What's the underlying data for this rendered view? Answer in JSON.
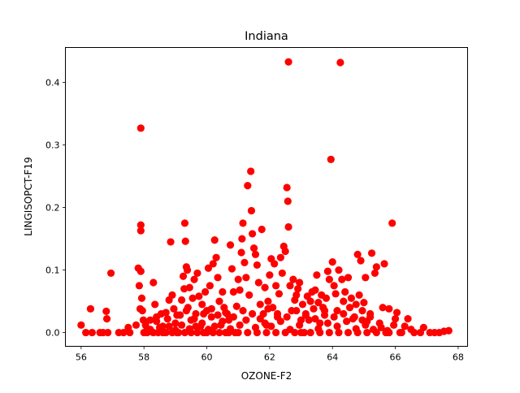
{
  "chart_data": {
    "type": "scatter",
    "title": "Indiana",
    "xlabel": "OZONE-F2",
    "ylabel": "LINGISOPCT-F19",
    "xlim": [
      55.5,
      68.3
    ],
    "ylim": [
      -0.022,
      0.456
    ],
    "xticks": [
      56,
      58,
      60,
      62,
      64,
      66,
      68
    ],
    "yticks": [
      0.0,
      0.1,
      0.2,
      0.3,
      0.4
    ],
    "ytick_labels": [
      "0.0",
      "0.1",
      "0.2",
      "0.3",
      "0.4"
    ],
    "marker_color": "#ff0000",
    "grid": false,
    "legend": "none",
    "series": [
      {
        "points": [
          [
            56.0,
            0.012
          ],
          [
            56.15,
            0.0
          ],
          [
            56.3,
            0.038
          ],
          [
            56.35,
            0.0
          ],
          [
            56.6,
            0.0
          ],
          [
            56.7,
            0.0
          ],
          [
            56.8,
            0.034
          ],
          [
            56.82,
            0.022
          ],
          [
            56.85,
            0.0
          ],
          [
            56.95,
            0.095
          ],
          [
            57.2,
            0.0
          ],
          [
            57.35,
            0.0
          ],
          [
            57.5,
            0.008
          ],
          [
            57.55,
            0.0
          ],
          [
            57.75,
            0.012
          ],
          [
            57.82,
            0.103
          ],
          [
            57.85,
            0.075
          ],
          [
            57.88,
            0.038
          ],
          [
            57.9,
            0.327
          ],
          [
            57.9,
            0.172
          ],
          [
            57.9,
            0.163
          ],
          [
            57.9,
            0.098
          ],
          [
            57.93,
            0.055
          ],
          [
            57.95,
            0.035
          ],
          [
            57.98,
            0.02
          ],
          [
            58.0,
            0.0
          ],
          [
            58.05,
            0.012
          ],
          [
            58.1,
            0.005
          ],
          [
            58.2,
            0.02
          ],
          [
            58.25,
            0.001
          ],
          [
            58.3,
            0.08
          ],
          [
            58.35,
            0.045
          ],
          [
            58.4,
            0.018
          ],
          [
            58.45,
            0.0
          ],
          [
            58.55,
            0.03
          ],
          [
            58.6,
            0.01
          ],
          [
            58.7,
            0.0
          ],
          [
            58.75,
            0.022
          ],
          [
            58.8,
            0.052
          ],
          [
            58.85,
            0.145
          ],
          [
            58.9,
            0.06
          ],
          [
            58.95,
            0.038
          ],
          [
            59.0,
            0.015
          ],
          [
            59.05,
            0.0
          ],
          [
            59.15,
            0.028
          ],
          [
            59.2,
            0.052
          ],
          [
            59.25,
            0.09
          ],
          [
            59.28,
            0.07
          ],
          [
            59.3,
            0.175
          ],
          [
            59.32,
            0.146
          ],
          [
            59.35,
            0.105
          ],
          [
            59.38,
            0.1
          ],
          [
            59.4,
            0.04
          ],
          [
            59.45,
            0.072
          ],
          [
            59.5,
            0.02
          ],
          [
            59.55,
            0.055
          ],
          [
            59.6,
            0.085
          ],
          [
            59.65,
            0.03
          ],
          [
            59.7,
            0.095
          ],
          [
            59.75,
            0.058
          ],
          [
            59.8,
            0.01
          ],
          [
            59.85,
            0.045
          ],
          [
            59.9,
            0.0
          ],
          [
            59.95,
            0.065
          ],
          [
            60.0,
            0.035
          ],
          [
            60.05,
            0.103
          ],
          [
            60.1,
            0.075
          ],
          [
            60.15,
            0.025
          ],
          [
            60.2,
            0.11
          ],
          [
            60.25,
            0.148
          ],
          [
            60.3,
            0.12
          ],
          [
            60.35,
            0.088
          ],
          [
            60.4,
            0.05
          ],
          [
            60.45,
            0.012
          ],
          [
            60.5,
            0.065
          ],
          [
            60.55,
            0.04
          ],
          [
            60.6,
            0.0
          ],
          [
            60.65,
            0.03
          ],
          [
            60.7,
            0.02
          ],
          [
            60.75,
            0.14
          ],
          [
            60.8,
            0.102
          ],
          [
            60.85,
            0.065
          ],
          [
            60.9,
            0.0
          ],
          [
            60.95,
            0.042
          ],
          [
            61.0,
            0.085
          ],
          [
            61.05,
            0.068
          ],
          [
            61.1,
            0.128
          ],
          [
            61.12,
            0.15
          ],
          [
            61.15,
            0.175
          ],
          [
            61.2,
            0.112
          ],
          [
            61.25,
            0.088
          ],
          [
            61.3,
            0.235
          ],
          [
            61.35,
            0.06
          ],
          [
            61.4,
            0.258
          ],
          [
            61.42,
            0.195
          ],
          [
            61.45,
            0.158
          ],
          [
            61.5,
            0.135
          ],
          [
            61.55,
            0.125
          ],
          [
            61.6,
            0.108
          ],
          [
            61.65,
            0.08
          ],
          [
            61.7,
            0.045
          ],
          [
            61.75,
            0.165
          ],
          [
            61.8,
            0.03
          ],
          [
            61.85,
            0.072
          ],
          [
            61.9,
            0.012
          ],
          [
            61.95,
            0.05
          ],
          [
            62.0,
            0.092
          ],
          [
            62.05,
            0.118
          ],
          [
            62.1,
            0.04
          ],
          [
            62.15,
            0.11
          ],
          [
            62.2,
            0.075
          ],
          [
            62.25,
            0.025
          ],
          [
            62.3,
            0.062
          ],
          [
            62.35,
            0.12
          ],
          [
            62.4,
            0.095
          ],
          [
            62.45,
            0.138
          ],
          [
            62.5,
            0.13
          ],
          [
            62.55,
            0.232
          ],
          [
            62.58,
            0.21
          ],
          [
            62.6,
            0.433
          ],
          [
            62.6,
            0.169
          ],
          [
            62.65,
            0.075
          ],
          [
            62.7,
            0.035
          ],
          [
            62.75,
            0.085
          ],
          [
            62.8,
            0.052
          ],
          [
            62.85,
            0.06
          ],
          [
            62.9,
            0.07
          ],
          [
            62.95,
            0.08
          ],
          [
            63.0,
            0.02
          ],
          [
            63.05,
            0.045
          ],
          [
            63.1,
            0.0
          ],
          [
            63.15,
            0.03
          ],
          [
            63.2,
            0.058
          ],
          [
            63.3,
            0.05
          ],
          [
            63.35,
            0.065
          ],
          [
            63.4,
            0.038
          ],
          [
            63.45,
            0.068
          ],
          [
            63.5,
            0.092
          ],
          [
            63.55,
            0.048
          ],
          [
            63.6,
            0.015
          ],
          [
            63.65,
            0.06
          ],
          [
            63.7,
            0.04
          ],
          [
            63.75,
            0.028
          ],
          [
            63.8,
            0.055
          ],
          [
            63.85,
            0.098
          ],
          [
            63.9,
            0.085
          ],
          [
            63.95,
            0.277
          ],
          [
            64.0,
            0.113
          ],
          [
            64.05,
            0.075
          ],
          [
            64.1,
            0.062
          ],
          [
            64.15,
            0.035
          ],
          [
            64.2,
            0.1
          ],
          [
            64.25,
            0.432
          ],
          [
            64.3,
            0.085
          ],
          [
            64.35,
            0.05
          ],
          [
            64.4,
            0.065
          ],
          [
            64.5,
            0.088
          ],
          [
            64.55,
            0.04
          ],
          [
            64.6,
            0.055
          ],
          [
            64.7,
            0.025
          ],
          [
            64.75,
            0.045
          ],
          [
            64.8,
            0.125
          ],
          [
            64.85,
            0.06
          ],
          [
            64.9,
            0.115
          ],
          [
            64.95,
            0.035
          ],
          [
            65.0,
            0.048
          ],
          [
            65.05,
            0.088
          ],
          [
            65.1,
            0.018
          ],
          [
            65.2,
            0.03
          ],
          [
            65.25,
            0.127
          ],
          [
            65.35,
            0.095
          ],
          [
            65.4,
            0.105
          ],
          [
            65.5,
            0.015
          ],
          [
            65.6,
            0.04
          ],
          [
            65.65,
            0.11
          ],
          [
            65.7,
            0.0
          ],
          [
            65.8,
            0.038
          ],
          [
            65.9,
            0.175
          ],
          [
            65.95,
            0.012
          ],
          [
            66.0,
            0.022
          ],
          [
            66.05,
            0.032
          ],
          [
            66.15,
            0.0
          ],
          [
            66.3,
            0.01
          ],
          [
            66.4,
            0.022
          ],
          [
            66.5,
            0.005
          ],
          [
            66.6,
            0.0
          ],
          [
            66.8,
            0.0
          ],
          [
            66.9,
            0.008
          ],
          [
            67.1,
            0.0
          ],
          [
            67.25,
            0.0
          ],
          [
            67.4,
            0.0
          ],
          [
            67.55,
            0.002
          ],
          [
            67.7,
            0.003
          ],
          [
            58.1,
            0.0
          ],
          [
            58.3,
            0.0
          ],
          [
            58.6,
            0.0
          ],
          [
            58.9,
            0.0
          ],
          [
            59.1,
            0.0
          ],
          [
            59.3,
            0.0
          ],
          [
            59.5,
            0.0
          ],
          [
            59.7,
            0.0
          ],
          [
            60.0,
            0.0
          ],
          [
            60.2,
            0.0
          ],
          [
            60.4,
            0.0
          ],
          [
            60.7,
            0.0
          ],
          [
            61.0,
            0.0
          ],
          [
            61.3,
            0.0
          ],
          [
            61.6,
            0.0
          ],
          [
            61.9,
            0.0
          ],
          [
            62.2,
            0.0
          ],
          [
            62.5,
            0.0
          ],
          [
            62.8,
            0.0
          ],
          [
            63.0,
            0.0
          ],
          [
            63.3,
            0.0
          ],
          [
            63.6,
            0.0
          ],
          [
            63.9,
            0.0
          ],
          [
            64.2,
            0.0
          ],
          [
            64.5,
            0.0
          ],
          [
            64.8,
            0.0
          ],
          [
            65.1,
            0.0
          ],
          [
            65.4,
            0.0
          ],
          [
            65.8,
            0.0
          ],
          [
            66.2,
            0.0
          ],
          [
            58.2,
            0.005
          ],
          [
            58.5,
            0.008
          ],
          [
            58.8,
            0.01
          ],
          [
            59.0,
            0.004
          ],
          [
            59.2,
            0.012
          ],
          [
            59.45,
            0.006
          ],
          [
            59.65,
            0.01
          ],
          [
            59.85,
            0.015
          ],
          [
            60.05,
            0.005
          ],
          [
            60.25,
            0.01
          ],
          [
            60.5,
            0.018
          ],
          [
            60.75,
            0.006
          ],
          [
            61.05,
            0.012
          ],
          [
            61.25,
            0.02
          ],
          [
            61.55,
            0.008
          ],
          [
            61.85,
            0.015
          ],
          [
            62.05,
            0.01
          ],
          [
            62.35,
            0.018
          ],
          [
            62.65,
            0.005
          ],
          [
            62.95,
            0.012
          ],
          [
            63.25,
            0.02
          ],
          [
            63.55,
            0.006
          ],
          [
            63.85,
            0.015
          ],
          [
            64.15,
            0.01
          ],
          [
            64.45,
            0.018
          ],
          [
            64.75,
            0.006
          ],
          [
            65.05,
            0.012
          ],
          [
            65.3,
            0.005
          ],
          [
            65.55,
            0.008
          ],
          [
            65.75,
            0.003
          ],
          [
            58.4,
            0.025
          ],
          [
            58.7,
            0.032
          ],
          [
            59.05,
            0.028
          ],
          [
            59.35,
            0.035
          ],
          [
            59.6,
            0.022
          ],
          [
            59.9,
            0.03
          ],
          [
            60.15,
            0.038
          ],
          [
            60.35,
            0.028
          ],
          [
            60.6,
            0.032
          ],
          [
            60.85,
            0.025
          ],
          [
            61.15,
            0.035
          ],
          [
            61.45,
            0.03
          ],
          [
            61.7,
            0.022
          ],
          [
            61.95,
            0.038
          ],
          [
            62.25,
            0.03
          ],
          [
            62.55,
            0.025
          ],
          [
            62.85,
            0.035
          ],
          [
            63.15,
            0.028
          ],
          [
            63.45,
            0.022
          ],
          [
            63.75,
            0.035
          ],
          [
            64.05,
            0.025
          ],
          [
            64.35,
            0.03
          ],
          [
            64.65,
            0.022
          ],
          [
            64.95,
            0.02
          ],
          [
            65.2,
            0.025
          ]
        ]
      }
    ]
  }
}
